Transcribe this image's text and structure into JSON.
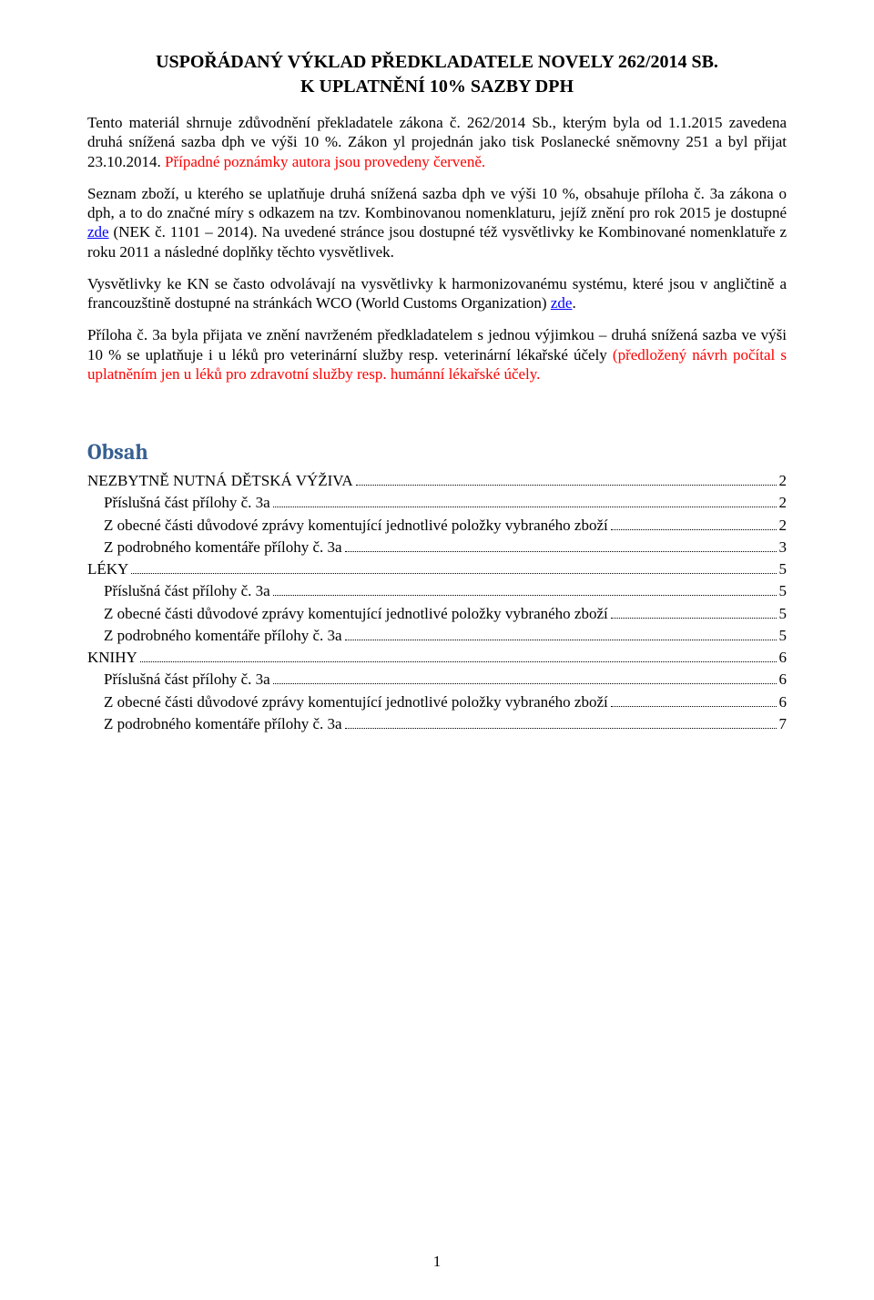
{
  "title": "USPOŘÁDANÝ VÝKLAD PŘEDKLADATELE NOVELY 262/2014 SB.",
  "subtitle": "K UPLATNĚNÍ 10% SAZBY DPH",
  "paragraphs": {
    "p1a": "Tento materiál shrnuje zdůvodnění překladatele zákona č. 262/2014 Sb., kterým byla od 1.1.2015 zavedena druhá snížená sazba dph ve výši 10 %. Zákon yl projednán jako tisk Poslanecké sněmovny 251 a byl přijat 23.10.2014. ",
    "p1red": "Případné poznámky autora jsou provedeny červeně.",
    "p2a": "Seznam zboží, u kterého se uplatňuje druhá snížená sazba dph ve výši 10 %, obsahuje příloha č. 3a zákona o dph, a to do značné míry s odkazem na tzv. Kombinovanou nomenklaturu, jejíž znění pro rok 2015 je dostupné ",
    "p2link1": "zde",
    "p2b": " (NEK č. 1101 – 2014). Na uvedené stránce jsou dostupné též vysvětlivky ke Kombinované nomenklatuře z roku 2011 a následné doplňky těchto vysvětlivek.",
    "p3a": "Vysvětlivky ke KN se často odvolávají na vysvětlivky k harmonizovanému systému, které jsou v angličtině a francouzštině dostupné na stránkách WCO (World Customs Organization) ",
    "p3link": "zde",
    "p3b": ".",
    "p4a": "Příloha č. 3a byla přijata ve znění navrženém předkladatelem s jednou výjimkou – druhá snížená sazba ve výši 10 % se uplatňuje i u léků pro veterinární služby resp. veterinární lékařské účely ",
    "p4red": "(předložený návrh počítal s uplatněním jen u léků pro zdravotní služby resp. humánní lékařské účely."
  },
  "obsah_heading": "Obsah",
  "toc": [
    {
      "level": 1,
      "label": "NEZBYTNĚ NUTNÁ DĚTSKÁ VÝŽIVA",
      "page": "2"
    },
    {
      "level": 2,
      "label": "Příslušná část přílohy č. 3a",
      "page": "2"
    },
    {
      "level": 2,
      "label": "Z obecné části důvodové zprávy komentující jednotlivé položky vybraného zboží",
      "page": "2"
    },
    {
      "level": 2,
      "label": "Z podrobného komentáře přílohy č. 3a",
      "page": "3"
    },
    {
      "level": 1,
      "label": "LÉKY",
      "page": "5"
    },
    {
      "level": 2,
      "label": "Příslušná část přílohy č. 3a",
      "page": "5"
    },
    {
      "level": 2,
      "label": "Z obecné části důvodové zprávy komentující jednotlivé položky vybraného zboží",
      "page": "5"
    },
    {
      "level": 2,
      "label": "Z podrobného komentáře přílohy č. 3a",
      "page": "5"
    },
    {
      "level": 1,
      "label": "KNIHY",
      "page": "6"
    },
    {
      "level": 2,
      "label": "Příslušná část přílohy č. 3a",
      "page": "6"
    },
    {
      "level": 2,
      "label": "Z obecné části důvodové zprávy komentující jednotlivé položky vybraného zboží",
      "page": "6"
    },
    {
      "level": 2,
      "label": "Z podrobného komentáře přílohy č. 3a",
      "page": "7"
    }
  ],
  "page_number": "1",
  "colors": {
    "text": "#000000",
    "red": "#ff0000",
    "link": "#0000ff",
    "heading": "#365f91",
    "background": "#ffffff"
  }
}
